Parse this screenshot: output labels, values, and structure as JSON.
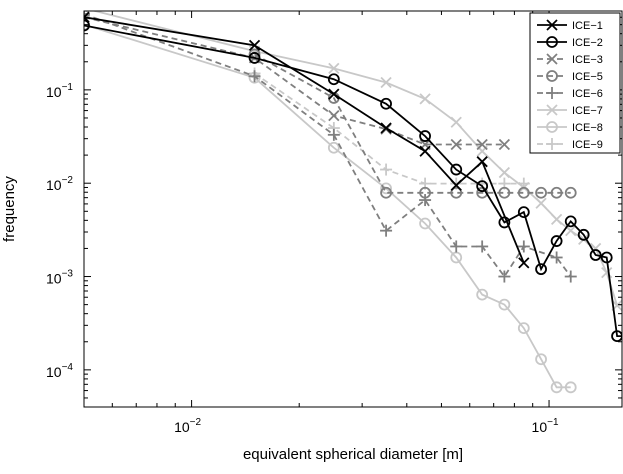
{
  "chart_data": {
    "type": "line",
    "xlabel": "equivalent spherical diameter [m]",
    "ylabel": "frequency",
    "xscale": "log",
    "yscale": "log",
    "xlim": [
      0.005,
      0.16
    ],
    "ylim": [
      4e-05,
      0.7
    ],
    "x_ticks": [
      {
        "value": 0.01,
        "base": "10",
        "exp": "−2"
      },
      {
        "value": 0.1,
        "base": "10",
        "exp": "−1"
      }
    ],
    "y_ticks": [
      {
        "value": 0.0001,
        "base": "10",
        "exp": "−4"
      },
      {
        "value": 0.001,
        "base": "10",
        "exp": "−3"
      },
      {
        "value": 0.01,
        "base": "10",
        "exp": "−2"
      },
      {
        "value": 0.1,
        "base": "10",
        "exp": "−1"
      }
    ],
    "grid": false,
    "legend_position": "top-right",
    "series": [
      {
        "name": "ICE−1",
        "color": "#000000",
        "marker": "x",
        "dash": "solid",
        "x": [
          0.005,
          0.015,
          0.025,
          0.035,
          0.045,
          0.055,
          0.065,
          0.085
        ],
        "y": [
          0.6,
          0.3,
          0.09,
          0.039,
          0.022,
          0.0095,
          0.017,
          0.0014
        ]
      },
      {
        "name": "ICE−2",
        "color": "#000000",
        "marker": "o",
        "dash": "solid",
        "x": [
          0.005,
          0.015,
          0.025,
          0.035,
          0.045,
          0.055,
          0.065,
          0.075,
          0.085,
          0.095,
          0.105,
          0.115,
          0.125,
          0.135,
          0.145,
          0.155,
          0.165
        ],
        "y": [
          0.49,
          0.22,
          0.13,
          0.071,
          0.032,
          0.014,
          0.0093,
          0.0038,
          0.0049,
          0.0012,
          0.0024,
          0.0039,
          0.0028,
          0.0017,
          0.0016,
          0.00023,
          0.00023
        ]
      },
      {
        "name": "ICE−3",
        "color": "#7f7f7f",
        "marker": "x",
        "dash": "dashed",
        "x": [
          0.005,
          0.015,
          0.025,
          0.035,
          0.045,
          0.055,
          0.065,
          0.075
        ],
        "y": [
          0.6,
          0.22,
          0.053,
          0.038,
          0.026,
          0.026,
          0.026,
          0.026
        ]
      },
      {
        "name": "ICE−5",
        "color": "#7f7f7f",
        "marker": "o",
        "dash": "dashed",
        "x": [
          0.015,
          0.025,
          0.035,
          0.045,
          0.055,
          0.065,
          0.075,
          0.085,
          0.095,
          0.105,
          0.115
        ],
        "y": [
          0.24,
          0.082,
          0.0079,
          0.0079,
          0.0079,
          0.0079,
          0.0079,
          0.0079,
          0.0079,
          0.0079,
          0.0079
        ]
      },
      {
        "name": "ICE−6",
        "color": "#7f7f7f",
        "marker": "+",
        "dash": "dashed",
        "x": [
          0.005,
          0.015,
          0.025,
          0.035,
          0.045,
          0.055,
          0.065,
          0.075,
          0.085,
          0.105,
          0.115
        ],
        "y": [
          0.65,
          0.14,
          0.033,
          0.0031,
          0.0066,
          0.0021,
          0.0021,
          0.001,
          0.0021,
          0.0016,
          0.001
        ]
      },
      {
        "name": "ICE−7",
        "color": "#c8c8c8",
        "marker": "x",
        "dash": "solid",
        "x": [
          0.005,
          0.015,
          0.025,
          0.035,
          0.045,
          0.055,
          0.065,
          0.075,
          0.085,
          0.095,
          0.105,
          0.115,
          0.125,
          0.135,
          0.145,
          0.155,
          0.165
        ],
        "y": [
          0.75,
          0.26,
          0.17,
          0.12,
          0.08,
          0.045,
          0.022,
          0.013,
          0.009,
          0.0061,
          0.0041,
          0.0031,
          0.0025,
          0.002,
          0.0011,
          0.00049,
          0.00049
        ]
      },
      {
        "name": "ICE−8",
        "color": "#c8c8c8",
        "marker": "o",
        "dash": "solid",
        "x": [
          0.005,
          0.015,
          0.025,
          0.035,
          0.045,
          0.055,
          0.065,
          0.075,
          0.085,
          0.095,
          0.105,
          0.115
        ],
        "y": [
          0.5,
          0.135,
          0.024,
          0.0088,
          0.0037,
          0.0016,
          0.00064,
          0.0005,
          0.00028,
          0.00013,
          6.5e-05,
          6.5e-05
        ]
      },
      {
        "name": "ICE−9",
        "color": "#c8c8c8",
        "marker": "+",
        "dash": "dashed",
        "x": [
          0.015,
          0.025,
          0.035,
          0.045,
          0.055,
          0.065,
          0.075,
          0.085
        ],
        "y": [
          0.15,
          0.039,
          0.014,
          0.0099,
          0.0099,
          0.0099,
          0.0099,
          0.0099
        ]
      }
    ]
  }
}
